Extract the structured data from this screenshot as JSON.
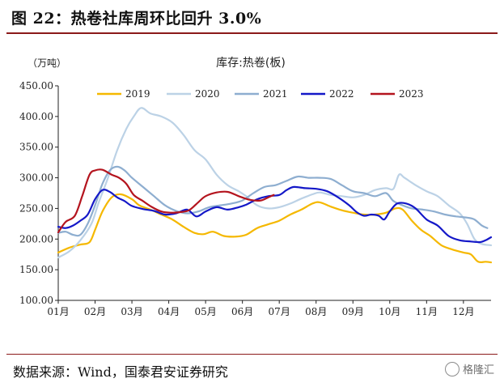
{
  "figure": {
    "title": "图 22：热卷社库周环比回升 3.0%",
    "source": "数据来源：Wind，国泰君安证券研究",
    "watermark": "格隆汇"
  },
  "chart_data": {
    "type": "line",
    "title": "库存:热卷(板)",
    "unit_label": "（万吨）",
    "xlabel": "",
    "ylabel": "",
    "x_categories": [
      "01月",
      "02月",
      "03月",
      "04月",
      "05月",
      "06月",
      "07月",
      "08月",
      "09月",
      "10月",
      "11月",
      "12月"
    ],
    "x_range": [
      1,
      12.75
    ],
    "ylim": [
      100,
      450
    ],
    "y_ticks": [
      "100.00",
      "150.00",
      "200.00",
      "250.00",
      "300.00",
      "350.00",
      "400.00",
      "450.00"
    ],
    "legend_position": "top",
    "grid": false,
    "series": [
      {
        "name": "2019",
        "color": "#f5b800",
        "points": [
          [
            1.0,
            178
          ],
          [
            1.3,
            186
          ],
          [
            1.6,
            191
          ],
          [
            1.85,
            195
          ],
          [
            2.0,
            215
          ],
          [
            2.2,
            245
          ],
          [
            2.45,
            268
          ],
          [
            2.7,
            273
          ],
          [
            3.0,
            265
          ],
          [
            3.2,
            255
          ],
          [
            3.5,
            248
          ],
          [
            3.8,
            240
          ],
          [
            4.1,
            232
          ],
          [
            4.4,
            220
          ],
          [
            4.7,
            210
          ],
          [
            4.95,
            208
          ],
          [
            5.2,
            212
          ],
          [
            5.5,
            205
          ],
          [
            5.8,
            204
          ],
          [
            6.1,
            207
          ],
          [
            6.4,
            218
          ],
          [
            6.7,
            224
          ],
          [
            7.0,
            230
          ],
          [
            7.3,
            240
          ],
          [
            7.6,
            248
          ],
          [
            7.9,
            258
          ],
          [
            8.1,
            260
          ],
          [
            8.4,
            253
          ],
          [
            8.7,
            247
          ],
          [
            9.0,
            243
          ],
          [
            9.3,
            240
          ],
          [
            9.6,
            240
          ],
          [
            9.9,
            243
          ],
          [
            10.15,
            250
          ],
          [
            10.35,
            248
          ],
          [
            10.6,
            230
          ],
          [
            10.85,
            215
          ],
          [
            11.1,
            205
          ],
          [
            11.4,
            190
          ],
          [
            11.7,
            183
          ],
          [
            12.0,
            178
          ],
          [
            12.2,
            175
          ],
          [
            12.4,
            163
          ],
          [
            12.6,
            163
          ],
          [
            12.75,
            162
          ]
        ]
      },
      {
        "name": "2020",
        "color": "#bcd2e6",
        "points": [
          [
            1.0,
            170
          ],
          [
            1.3,
            180
          ],
          [
            1.6,
            198
          ],
          [
            1.9,
            225
          ],
          [
            2.1,
            260
          ],
          [
            2.35,
            300
          ],
          [
            2.6,
            345
          ],
          [
            2.85,
            380
          ],
          [
            3.05,
            400
          ],
          [
            3.25,
            414
          ],
          [
            3.5,
            405
          ],
          [
            3.8,
            400
          ],
          [
            4.1,
            390
          ],
          [
            4.4,
            370
          ],
          [
            4.7,
            345
          ],
          [
            5.0,
            330
          ],
          [
            5.3,
            305
          ],
          [
            5.6,
            288
          ],
          [
            5.9,
            278
          ],
          [
            6.1,
            270
          ],
          [
            6.4,
            255
          ],
          [
            6.7,
            250
          ],
          [
            7.0,
            252
          ],
          [
            7.3,
            258
          ],
          [
            7.6,
            266
          ],
          [
            7.9,
            273
          ],
          [
            8.1,
            276
          ],
          [
            8.4,
            272
          ],
          [
            8.7,
            270
          ],
          [
            9.0,
            268
          ],
          [
            9.3,
            272
          ],
          [
            9.6,
            280
          ],
          [
            9.9,
            283
          ],
          [
            10.1,
            282
          ],
          [
            10.25,
            305
          ],
          [
            10.4,
            300
          ],
          [
            10.7,
            288
          ],
          [
            11.0,
            278
          ],
          [
            11.3,
            270
          ],
          [
            11.6,
            255
          ],
          [
            11.9,
            242
          ],
          [
            12.1,
            225
          ],
          [
            12.3,
            200
          ],
          [
            12.5,
            192
          ],
          [
            12.75,
            190
          ]
        ]
      },
      {
        "name": "2021",
        "color": "#8eaed0",
        "points": [
          [
            1.0,
            210
          ],
          [
            1.2,
            212
          ],
          [
            1.4,
            207
          ],
          [
            1.6,
            207
          ],
          [
            1.8,
            225
          ],
          [
            2.0,
            255
          ],
          [
            2.2,
            290
          ],
          [
            2.4,
            312
          ],
          [
            2.6,
            318
          ],
          [
            2.8,
            312
          ],
          [
            3.0,
            300
          ],
          [
            3.3,
            285
          ],
          [
            3.6,
            270
          ],
          [
            3.9,
            255
          ],
          [
            4.2,
            246
          ],
          [
            4.5,
            242
          ],
          [
            4.8,
            245
          ],
          [
            5.1,
            252
          ],
          [
            5.4,
            255
          ],
          [
            5.7,
            258
          ],
          [
            6.0,
            263
          ],
          [
            6.3,
            275
          ],
          [
            6.6,
            285
          ],
          [
            6.9,
            288
          ],
          [
            7.2,
            295
          ],
          [
            7.5,
            302
          ],
          [
            7.8,
            300
          ],
          [
            8.1,
            300
          ],
          [
            8.4,
            298
          ],
          [
            8.7,
            288
          ],
          [
            9.0,
            278
          ],
          [
            9.3,
            275
          ],
          [
            9.6,
            270
          ],
          [
            9.9,
            275
          ],
          [
            10.1,
            262
          ],
          [
            10.35,
            255
          ],
          [
            10.6,
            250
          ],
          [
            10.9,
            248
          ],
          [
            11.2,
            245
          ],
          [
            11.5,
            240
          ],
          [
            11.8,
            237
          ],
          [
            12.1,
            235
          ],
          [
            12.3,
            232
          ],
          [
            12.5,
            222
          ],
          [
            12.65,
            218
          ]
        ]
      },
      {
        "name": "2022",
        "color": "#1418c8",
        "points": [
          [
            1.0,
            220
          ],
          [
            1.2,
            218
          ],
          [
            1.4,
            222
          ],
          [
            1.6,
            230
          ],
          [
            1.8,
            240
          ],
          [
            2.0,
            265
          ],
          [
            2.2,
            280
          ],
          [
            2.4,
            277
          ],
          [
            2.6,
            268
          ],
          [
            2.8,
            262
          ],
          [
            3.0,
            254
          ],
          [
            3.3,
            249
          ],
          [
            3.6,
            246
          ],
          [
            3.9,
            240
          ],
          [
            4.2,
            242
          ],
          [
            4.5,
            248
          ],
          [
            4.75,
            237
          ],
          [
            5.0,
            245
          ],
          [
            5.3,
            252
          ],
          [
            5.6,
            248
          ],
          [
            5.9,
            252
          ],
          [
            6.1,
            256
          ],
          [
            6.4,
            265
          ],
          [
            6.7,
            270
          ],
          [
            7.0,
            272
          ],
          [
            7.2,
            280
          ],
          [
            7.4,
            285
          ],
          [
            7.7,
            283
          ],
          [
            8.0,
            282
          ],
          [
            8.3,
            278
          ],
          [
            8.6,
            268
          ],
          [
            8.9,
            255
          ],
          [
            9.1,
            244
          ],
          [
            9.3,
            238
          ],
          [
            9.5,
            240
          ],
          [
            9.7,
            238
          ],
          [
            9.85,
            232
          ],
          [
            10.0,
            245
          ],
          [
            10.2,
            258
          ],
          [
            10.45,
            258
          ],
          [
            10.7,
            250
          ],
          [
            11.0,
            232
          ],
          [
            11.3,
            222
          ],
          [
            11.6,
            205
          ],
          [
            11.9,
            198
          ],
          [
            12.2,
            196
          ],
          [
            12.45,
            195
          ],
          [
            12.6,
            198
          ],
          [
            12.75,
            203
          ]
        ]
      },
      {
        "name": "2023",
        "color": "#b4141e",
        "points": [
          [
            1.0,
            211
          ],
          [
            1.2,
            228
          ],
          [
            1.45,
            238
          ],
          [
            1.65,
            270
          ],
          [
            1.85,
            305
          ],
          [
            2.0,
            312
          ],
          [
            2.2,
            313
          ],
          [
            2.45,
            305
          ],
          [
            2.65,
            300
          ],
          [
            2.85,
            290
          ],
          [
            3.05,
            272
          ],
          [
            3.3,
            262
          ],
          [
            3.55,
            252
          ],
          [
            3.8,
            245
          ],
          [
            4.05,
            243
          ],
          [
            4.3,
            244
          ],
          [
            4.55,
            247
          ],
          [
            4.8,
            260
          ],
          [
            5.0,
            270
          ],
          [
            5.3,
            276
          ],
          [
            5.6,
            277
          ],
          [
            5.9,
            270
          ],
          [
            6.2,
            264
          ],
          [
            6.5,
            263
          ],
          [
            6.7,
            268
          ],
          [
            6.85,
            272
          ]
        ]
      }
    ]
  }
}
